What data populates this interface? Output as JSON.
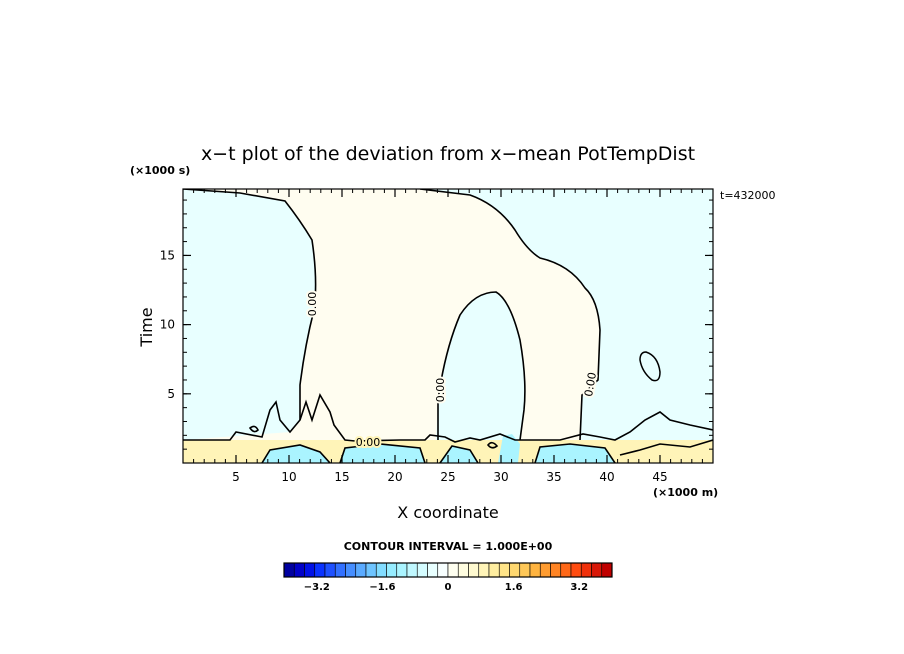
{
  "chart_data": {
    "type": "contour",
    "title": "x−t plot of the deviation from x−mean PotTempDist",
    "xlabel": "X coordinate",
    "ylabel": "Time",
    "x_unit": "(×1000 m)",
    "y_unit": "(×1000 s)",
    "time_label": "t=432000",
    "xlim": [
      0,
      50
    ],
    "ylim": [
      0,
      19.8
    ],
    "x_ticks": [
      5,
      10,
      15,
      20,
      25,
      30,
      35,
      40,
      45
    ],
    "y_ticks": [
      5,
      10,
      15
    ],
    "contour_interval_text": "CONTOUR INTERVAL = 1.000E+00",
    "contour_labels": [
      "0.00",
      "0.00",
      "0.00",
      "0.00"
    ],
    "colorbar": {
      "min": -4.0,
      "max": 4.0,
      "tick_values": [
        -3.2,
        -1.6,
        0,
        1.6,
        3.2
      ],
      "tick_labels": [
        "−3.2",
        "−1.6",
        "0",
        "1.6",
        "3.2"
      ]
    },
    "colors": {
      "positive_region": "#fffdf0",
      "negative_region": "#e8ffff",
      "band_positive": "#fff4b8",
      "band_negative": "#aaf4ff"
    }
  }
}
